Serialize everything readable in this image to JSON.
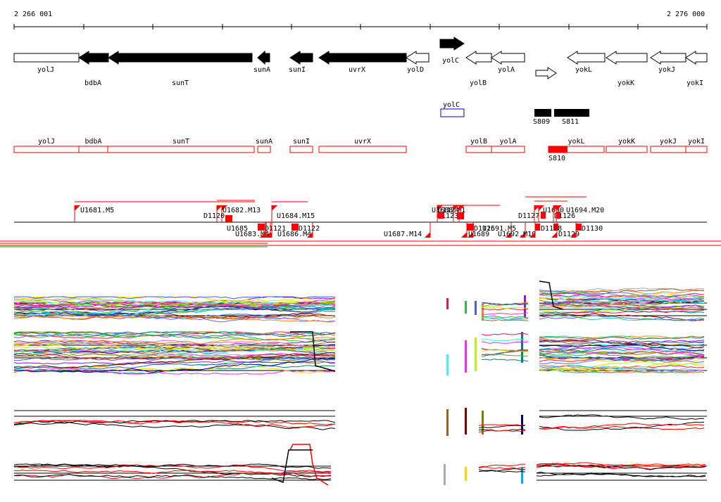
{
  "coords": {
    "start": "2 266 001",
    "end": "2 276 000"
  },
  "genes": [
    {
      "name": "yolJ",
      "strand": "+",
      "filled": false,
      "label_row": "top"
    },
    {
      "name": "bdbA",
      "strand": "-",
      "filled": true,
      "label_row": "bottom"
    },
    {
      "name": "sunT",
      "strand": "-",
      "filled": true,
      "label_row": "bottom"
    },
    {
      "name": "sunA",
      "strand": "-",
      "filled": true,
      "label_row": "top"
    },
    {
      "name": "sunI",
      "strand": "-",
      "filled": true,
      "label_row": "top"
    },
    {
      "name": "uvrX",
      "strand": "-",
      "filled": true,
      "label_row": "top"
    },
    {
      "name": "yolD",
      "strand": "-",
      "filled": false,
      "label_row": "top"
    },
    {
      "name": "yolC",
      "strand": "+",
      "filled": true,
      "label_row": "top"
    },
    {
      "name": "yolB",
      "strand": "-",
      "filled": false,
      "label_row": "bottom"
    },
    {
      "name": "yolA",
      "strand": "-",
      "filled": false,
      "label_row": "top"
    },
    {
      "name": "",
      "strand": "+",
      "filled": false,
      "label_row": "none"
    },
    {
      "name": "yokL",
      "strand": "-",
      "filled": false,
      "label_row": "top"
    },
    {
      "name": "yokK",
      "strand": "-",
      "filled": false,
      "label_row": "bottom"
    },
    {
      "name": "yokJ",
      "strand": "-",
      "filled": false,
      "label_row": "top"
    },
    {
      "name": "yokI",
      "strand": "-",
      "filled": false,
      "label_row": "bottom"
    }
  ],
  "blue_feature": "yolC",
  "black_features": [
    "S809",
    "S811"
  ],
  "red_genes": [
    "yolJ",
    "bdbA",
    "sunT",
    "sunA",
    "sunI",
    "uvrX",
    "yolB",
    "yolA",
    "yokL",
    "yokK",
    "yokJ",
    "yokI"
  ],
  "red_feature": "S810",
  "upper_markers": [
    "U1681.M5",
    "D1120",
    "U1682.M13",
    "U1684.M15",
    "U1688.M1",
    "D1123",
    "D1124",
    "D1127",
    "U1690",
    "D1126",
    "U1694.M20"
  ],
  "lower_markers": [
    "U1685",
    "U1683.M4",
    "D1121",
    "U1686.M4",
    "D1122",
    "U1687.M14",
    "D1125",
    "U1689",
    "U1691.M5",
    "U1692.M10",
    "D1128",
    "D1129",
    "D1130"
  ],
  "colors": {
    "red": "#ff0000",
    "black": "#000000",
    "blue": "#0000cc"
  }
}
